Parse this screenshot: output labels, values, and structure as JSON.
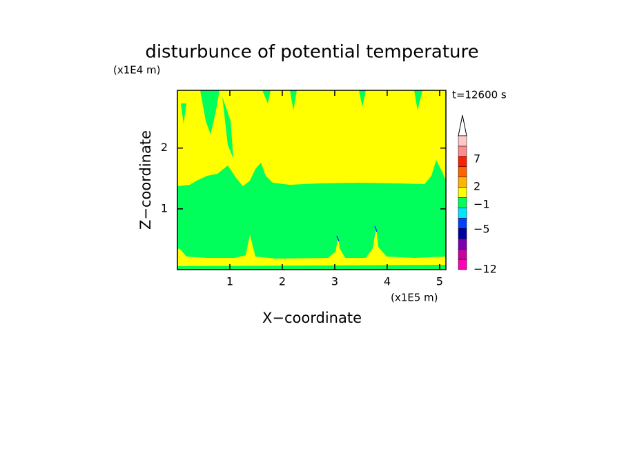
{
  "chart_data": {
    "type": "contour",
    "title": "disturbunce of potential temperature",
    "y_unit": "(x1E4 m)",
    "x_unit": "(x1E5 m)",
    "time_label": "t=12600 s",
    "ylabel": "Z−coordinate",
    "xlabel": "X−coordinate",
    "xlim": [
      0,
      5.12
    ],
    "xticks": [
      1,
      2,
      3,
      4,
      5
    ],
    "ylim": [
      0,
      2.95
    ],
    "yticks": [
      1,
      2
    ],
    "colorbar": {
      "colors": [
        "#ff00b4",
        "#c8009c",
        "#7a00b4",
        "#0000a0",
        "#0040ff",
        "#00e6ff",
        "#00ff5a",
        "#ffff00",
        "#ffb400",
        "#ff6400",
        "#ff1e00",
        "#ff8c8c",
        "#ffc8c8"
      ],
      "ticks": [
        {
          "value": -12,
          "label": "−12"
        },
        {
          "value": -5,
          "label": "−5"
        },
        {
          "value": -1,
          "label": "−1"
        },
        2,
        7
      ]
    }
  }
}
